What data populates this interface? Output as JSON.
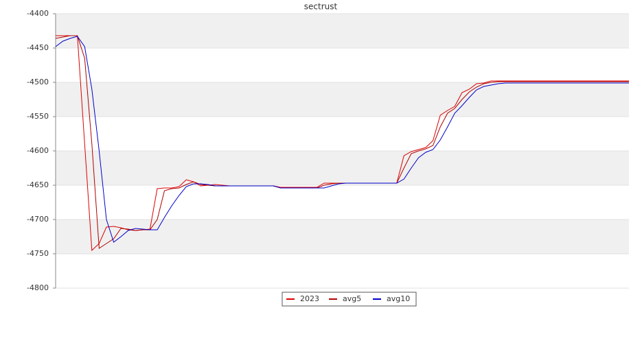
{
  "chart_data": {
    "type": "line",
    "title": "sectrust",
    "ylim": [
      -4800,
      -4400
    ],
    "yticks": [
      -4400,
      -4450,
      -4500,
      -4550,
      -4600,
      -4650,
      -4700,
      -4750,
      -4800
    ],
    "grid": true,
    "bands": true,
    "legend": "bottom",
    "series": [
      {
        "name": "2023",
        "color": "#dd0000",
        "values": [
          -4432,
          -4432,
          -4432,
          -4432,
          -4590,
          -4745,
          -4735,
          -4711,
          -4710,
          -4712,
          -4715,
          -4716,
          -4715,
          -4714,
          -4655,
          -4654,
          -4654,
          -4652,
          -4642,
          -4645,
          -4651,
          -4650,
          -4649,
          -4650,
          -4651,
          -4651,
          -4651,
          -4651,
          -4651,
          -4651,
          -4651,
          -4653,
          -4653,
          -4653,
          -4653,
          -4653,
          -4653,
          -4647,
          -4647,
          -4647,
          -4647,
          -4647,
          -4647,
          -4647,
          -4647,
          -4647,
          -4647,
          -4647,
          -4607,
          -4601,
          -4598,
          -4595,
          -4585,
          -4548,
          -4541,
          -4535,
          -4515,
          -4510,
          -4502,
          -4501,
          -4498,
          -4498,
          -4498,
          -4498,
          -4498,
          -4498,
          -4498,
          -4498,
          -4498,
          -4498,
          -4498,
          -4498,
          -4498,
          -4498,
          -4498,
          -4498,
          -4498,
          -4498,
          -4498,
          -4498
        ]
      },
      {
        "name": "avg5",
        "color": "#b00000",
        "values": [
          -4436,
          -4434,
          -4432,
          -4432,
          -4465,
          -4590,
          -4742,
          -4735,
          -4728,
          -4713,
          -4714,
          -4716,
          -4715,
          -4715,
          -4700,
          -4658,
          -4655,
          -4654,
          -4649,
          -4645,
          -4649,
          -4650,
          -4651,
          -4651,
          -4651,
          -4651,
          -4651,
          -4651,
          -4651,
          -4651,
          -4651,
          -4654,
          -4654,
          -4654,
          -4654,
          -4654,
          -4654,
          -4650,
          -4648,
          -4647,
          -4647,
          -4647,
          -4647,
          -4647,
          -4647,
          -4647,
          -4647,
          -4647,
          -4625,
          -4604,
          -4600,
          -4597,
          -4592,
          -4565,
          -4545,
          -4538,
          -4525,
          -4514,
          -4507,
          -4502,
          -4500,
          -4499,
          -4499,
          -4499,
          -4499,
          -4499,
          -4499,
          -4499,
          -4499,
          -4499,
          -4499,
          -4499,
          -4499,
          -4499,
          -4499,
          -4499,
          -4499,
          -4499,
          -4499,
          -4499
        ]
      },
      {
        "name": "avg10",
        "color": "#0000cc",
        "values": [
          -4448,
          -4440,
          -4436,
          -4433,
          -4448,
          -4510,
          -4600,
          -4700,
          -4733,
          -4725,
          -4716,
          -4713,
          -4714,
          -4715,
          -4715,
          -4697,
          -4680,
          -4665,
          -4652,
          -4648,
          -4648,
          -4649,
          -4651,
          -4651,
          -4651,
          -4651,
          -4651,
          -4651,
          -4651,
          -4651,
          -4651,
          -4654,
          -4654,
          -4654,
          -4654,
          -4654,
          -4654,
          -4654,
          -4651,
          -4648,
          -4647,
          -4647,
          -4647,
          -4647,
          -4647,
          -4647,
          -4647,
          -4647,
          -4641,
          -4625,
          -4610,
          -4602,
          -4598,
          -4584,
          -4565,
          -4545,
          -4534,
          -4522,
          -4511,
          -4506,
          -4504,
          -4502,
          -4501,
          -4501,
          -4501,
          -4501,
          -4501,
          -4501,
          -4501,
          -4501,
          -4501,
          -4501,
          -4501,
          -4501,
          -4501,
          -4501,
          -4501,
          -4501,
          -4501,
          -4501
        ]
      }
    ]
  }
}
